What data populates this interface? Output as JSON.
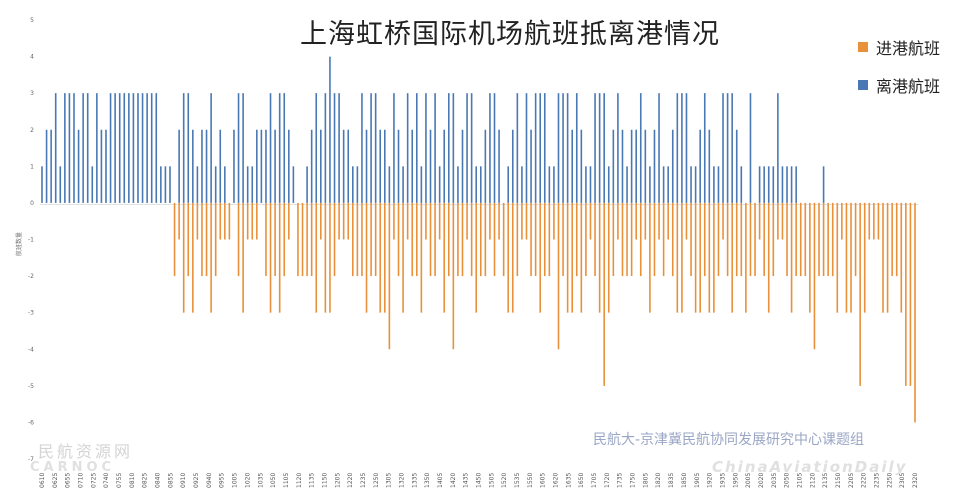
{
  "chart_data": {
    "type": "bar",
    "title": "上海虹桥国际机场航班抵离港情况",
    "ylabel": "航班数量",
    "ylim": [
      -7,
      5
    ],
    "yticks": [
      5,
      4,
      3,
      2,
      1,
      0,
      -1,
      -2,
      -3,
      -4,
      -5,
      -6,
      -7
    ],
    "grid": false,
    "legend_position": "top-right",
    "series": [
      {
        "name": "进港航班",
        "color": "#e8913a",
        "values": [
          0,
          0,
          0,
          0,
          0,
          0,
          0,
          0,
          0,
          0,
          0,
          0,
          0,
          0,
          0,
          0,
          0,
          0,
          0,
          0,
          0,
          0,
          0,
          0,
          0,
          0,
          0,
          0,
          0,
          -2,
          -1,
          -3,
          -2,
          -3,
          -1,
          -2,
          -2,
          -3,
          -2,
          -1,
          -1,
          -1,
          0,
          -2,
          -3,
          -1,
          -1,
          -1,
          0,
          -2,
          -3,
          -2,
          -3,
          -2,
          -1,
          0,
          -2,
          -2,
          -2,
          -2,
          -3,
          -1,
          -3,
          -3,
          -2,
          -1,
          -1,
          -1,
          -2,
          -2,
          -2,
          -3,
          -2,
          -2,
          -3,
          -3,
          -4,
          -1,
          -2,
          -3,
          -1,
          -2,
          -2,
          -3,
          -1,
          -2,
          -2,
          -1,
          -3,
          -2,
          -4,
          -2,
          -2,
          -1,
          -2,
          -3,
          -2,
          -2,
          -1,
          -2,
          -1,
          -2,
          -3,
          -3,
          -2,
          -1,
          -1,
          -2,
          -2,
          -3,
          -2,
          -2,
          -1,
          -4,
          -2,
          -3,
          -3,
          -2,
          -3,
          -2,
          -1,
          -2,
          -3,
          -5,
          -3,
          -2,
          -1,
          -2,
          -2,
          -2,
          -1,
          -2,
          -1,
          -3,
          -2,
          -1,
          -2,
          -1,
          -2,
          -3,
          -3,
          -1,
          -2,
          -3,
          -3,
          -2,
          -3,
          -3,
          -2,
          -1,
          -2,
          -3,
          -2,
          -2,
          -3,
          -2,
          -2,
          -1,
          -2,
          -3,
          -2,
          -1,
          -1,
          -2,
          -3,
          -2,
          -2,
          -2,
          -3,
          -4,
          -2,
          -2,
          -2,
          -2,
          -3,
          -1,
          -3,
          -3,
          -2,
          -5,
          -3,
          -1,
          -1,
          -1,
          -3,
          -3,
          -2,
          -2,
          -3,
          -5,
          -5,
          -6
        ]
      },
      {
        "name": "离港航班",
        "color": "#4a78b4",
        "values": [
          1,
          2,
          2,
          3,
          1,
          3,
          3,
          3,
          2,
          3,
          3,
          1,
          3,
          2,
          2,
          3,
          3,
          3,
          3,
          3,
          3,
          3,
          3,
          3,
          3,
          3,
          1,
          1,
          1,
          0,
          2,
          3,
          3,
          2,
          1,
          2,
          2,
          3,
          1,
          2,
          1,
          0,
          2,
          3,
          3,
          1,
          1,
          2,
          2,
          2,
          3,
          2,
          3,
          3,
          2,
          1,
          0,
          0,
          1,
          2,
          3,
          2,
          3,
          4,
          3,
          3,
          2,
          2,
          1,
          1,
          3,
          2,
          3,
          3,
          2,
          2,
          1,
          3,
          2,
          1,
          3,
          2,
          3,
          1,
          3,
          2,
          3,
          1,
          2,
          3,
          3,
          1,
          2,
          3,
          3,
          1,
          1,
          2,
          3,
          3,
          2,
          0,
          1,
          2,
          3,
          1,
          3,
          2,
          3,
          3,
          3,
          1,
          1,
          3,
          3,
          3,
          2,
          3,
          2,
          1,
          1,
          3,
          3,
          3,
          1,
          2,
          3,
          2,
          1,
          2,
          2,
          3,
          2,
          1,
          2,
          3,
          1,
          1,
          2,
          3,
          3,
          3,
          1,
          1,
          2,
          3,
          2,
          1,
          1,
          3,
          3,
          3,
          2,
          1,
          0,
          3,
          0,
          1,
          1,
          1,
          1,
          3,
          1,
          1,
          1,
          1,
          0,
          0,
          0,
          0,
          0,
          1,
          0,
          0,
          0,
          0,
          0,
          0,
          0,
          0,
          0,
          0,
          0,
          0,
          0,
          0,
          0,
          0,
          0,
          0,
          0,
          0
        ]
      }
    ],
    "x_tick_labels": [
      "0610",
      "0625",
      "0655",
      "0710",
      "0725",
      "0740",
      "0755",
      "0810",
      "0825",
      "0840",
      "0855",
      "0910",
      "0925",
      "0940",
      "0955",
      "1005",
      "1020",
      "1035",
      "1050",
      "1105",
      "1120",
      "1135",
      "1150",
      "1205",
      "1220",
      "1235",
      "1250",
      "1305",
      "1320",
      "1335",
      "1350",
      "1405",
      "1420",
      "1435",
      "1450",
      "1505",
      "1520",
      "1535",
      "1550",
      "1605",
      "1620",
      "1635",
      "1650",
      "1705",
      "1720",
      "1735",
      "1750",
      "1805",
      "1820",
      "1835",
      "1850",
      "1905",
      "1920",
      "1935",
      "1950",
      "2005",
      "2020",
      "2035",
      "2050",
      "2105",
      "2120",
      "2135",
      "2150",
      "2205",
      "2220",
      "2235",
      "2250",
      "2305",
      "2320"
    ]
  },
  "legend": {
    "arrivals_label": "进港航班",
    "departures_label": "离港航班"
  },
  "credit": "民航大-京津冀民航协同发展研究中心课题组",
  "watermarks": {
    "left_cn": "民航资源网",
    "left_en": "CARNOC",
    "right_en": "ChinaAviationDaily"
  }
}
